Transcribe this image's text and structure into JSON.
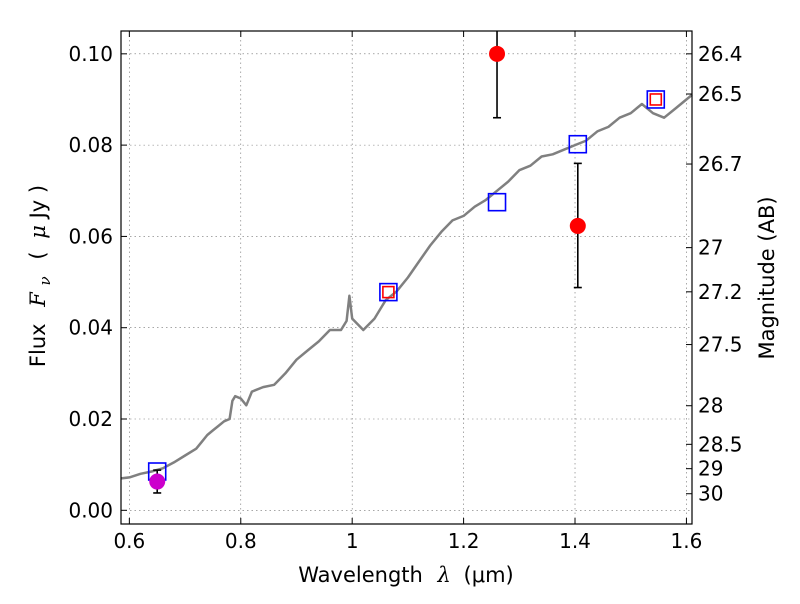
{
  "chart_data": {
    "type": "scatter",
    "xlabel": {
      "prefix": "Wavelength",
      "math": "λ",
      "unit": "(μm)"
    },
    "ylabel": {
      "prefix": "Flux",
      "math": "F",
      "sub": "ν",
      "unit_open": "(",
      "unit_mu": "μ",
      "unit_rest": "Jy )"
    },
    "y2label": "Magnitude (AB)",
    "xlim": [
      0.585,
      1.61
    ],
    "ylim": [
      -0.003,
      0.105
    ],
    "grid": true,
    "x_ticks": [
      {
        "value": 0.6,
        "label": "0.6"
      },
      {
        "value": 0.8,
        "label": "0.8"
      },
      {
        "value": 1.0,
        "label": "1"
      },
      {
        "value": 1.2,
        "label": "1.2"
      },
      {
        "value": 1.4,
        "label": "1.4"
      },
      {
        "value": 1.6,
        "label": "1.6"
      }
    ],
    "y_ticks": [
      {
        "value": 0.0,
        "label": "0.00"
      },
      {
        "value": 0.02,
        "label": "0.02"
      },
      {
        "value": 0.04,
        "label": "0.04"
      },
      {
        "value": 0.06,
        "label": "0.06"
      },
      {
        "value": 0.08,
        "label": "0.08"
      },
      {
        "value": 0.1,
        "label": "0.10"
      }
    ],
    "mag_ticks": [
      {
        "value": 26.4,
        "label": "26.4"
      },
      {
        "value": 26.5,
        "label": "26.5"
      },
      {
        "value": 26.7,
        "label": "26.7"
      },
      {
        "value": 27.0,
        "label": "27"
      },
      {
        "value": 27.2,
        "label": "27.2"
      },
      {
        "value": 27.5,
        "label": "27.5"
      },
      {
        "value": 28.0,
        "label": "28"
      },
      {
        "value": 28.5,
        "label": "28.5"
      },
      {
        "value": 29.0,
        "label": "29"
      },
      {
        "value": 30.0,
        "label": "30"
      }
    ],
    "model_spectrum": {
      "color": "#808080",
      "points": [
        [
          0.585,
          0.007
        ],
        [
          0.6,
          0.0072
        ],
        [
          0.62,
          0.008
        ],
        [
          0.64,
          0.0085
        ],
        [
          0.66,
          0.0092
        ],
        [
          0.68,
          0.0105
        ],
        [
          0.7,
          0.012
        ],
        [
          0.72,
          0.0135
        ],
        [
          0.73,
          0.015
        ],
        [
          0.74,
          0.0165
        ],
        [
          0.75,
          0.0175
        ],
        [
          0.76,
          0.0185
        ],
        [
          0.77,
          0.0195
        ],
        [
          0.78,
          0.02
        ],
        [
          0.785,
          0.024
        ],
        [
          0.79,
          0.025
        ],
        [
          0.8,
          0.0245
        ],
        [
          0.81,
          0.023
        ],
        [
          0.82,
          0.026
        ],
        [
          0.84,
          0.027
        ],
        [
          0.86,
          0.0275
        ],
        [
          0.88,
          0.03
        ],
        [
          0.9,
          0.033
        ],
        [
          0.92,
          0.035
        ],
        [
          0.94,
          0.037
        ],
        [
          0.96,
          0.0395
        ],
        [
          0.98,
          0.0395
        ],
        [
          0.99,
          0.0415
        ],
        [
          0.995,
          0.047
        ],
        [
          1.0,
          0.042
        ],
        [
          1.02,
          0.0395
        ],
        [
          1.04,
          0.042
        ],
        [
          1.06,
          0.046
        ],
        [
          1.08,
          0.048
        ],
        [
          1.1,
          0.051
        ],
        [
          1.12,
          0.0545
        ],
        [
          1.14,
          0.058
        ],
        [
          1.16,
          0.061
        ],
        [
          1.18,
          0.0635
        ],
        [
          1.2,
          0.0645
        ],
        [
          1.22,
          0.0665
        ],
        [
          1.24,
          0.068
        ],
        [
          1.26,
          0.07
        ],
        [
          1.28,
          0.072
        ],
        [
          1.3,
          0.0745
        ],
        [
          1.32,
          0.0755
        ],
        [
          1.34,
          0.0775
        ],
        [
          1.36,
          0.078
        ],
        [
          1.38,
          0.079
        ],
        [
          1.4,
          0.08
        ],
        [
          1.42,
          0.081
        ],
        [
          1.44,
          0.083
        ],
        [
          1.46,
          0.084
        ],
        [
          1.48,
          0.086
        ],
        [
          1.5,
          0.087
        ],
        [
          1.52,
          0.089
        ],
        [
          1.54,
          0.087
        ],
        [
          1.56,
          0.086
        ],
        [
          1.58,
          0.088
        ],
        [
          1.61,
          0.091
        ]
      ]
    },
    "series": [
      {
        "marker": "square",
        "color": "#0000ff",
        "points": [
          {
            "x": 0.65,
            "y": 0.0085
          },
          {
            "x": 1.065,
            "y": 0.0478
          },
          {
            "x": 1.26,
            "y": 0.0675
          },
          {
            "x": 1.405,
            "y": 0.0802
          },
          {
            "x": 1.545,
            "y": 0.09
          }
        ]
      },
      {
        "marker": "square",
        "color": "#ff0000",
        "points": [
          {
            "x": 1.065,
            "y": 0.0478
          },
          {
            "x": 1.545,
            "y": 0.09
          }
        ]
      },
      {
        "marker": "circle",
        "color": "#ff0000",
        "points": [
          {
            "x": 1.26,
            "y": 0.1,
            "err_low": 0.086,
            "err_high": 0.107
          },
          {
            "x": 1.405,
            "y": 0.0623,
            "err_low": 0.0488,
            "err_high": 0.076
          }
        ]
      },
      {
        "marker": "circle",
        "color": "#cc00cc",
        "points": [
          {
            "x": 0.65,
            "y": 0.0063,
            "err_low": 0.0038,
            "err_high": 0.0088
          }
        ]
      }
    ]
  }
}
